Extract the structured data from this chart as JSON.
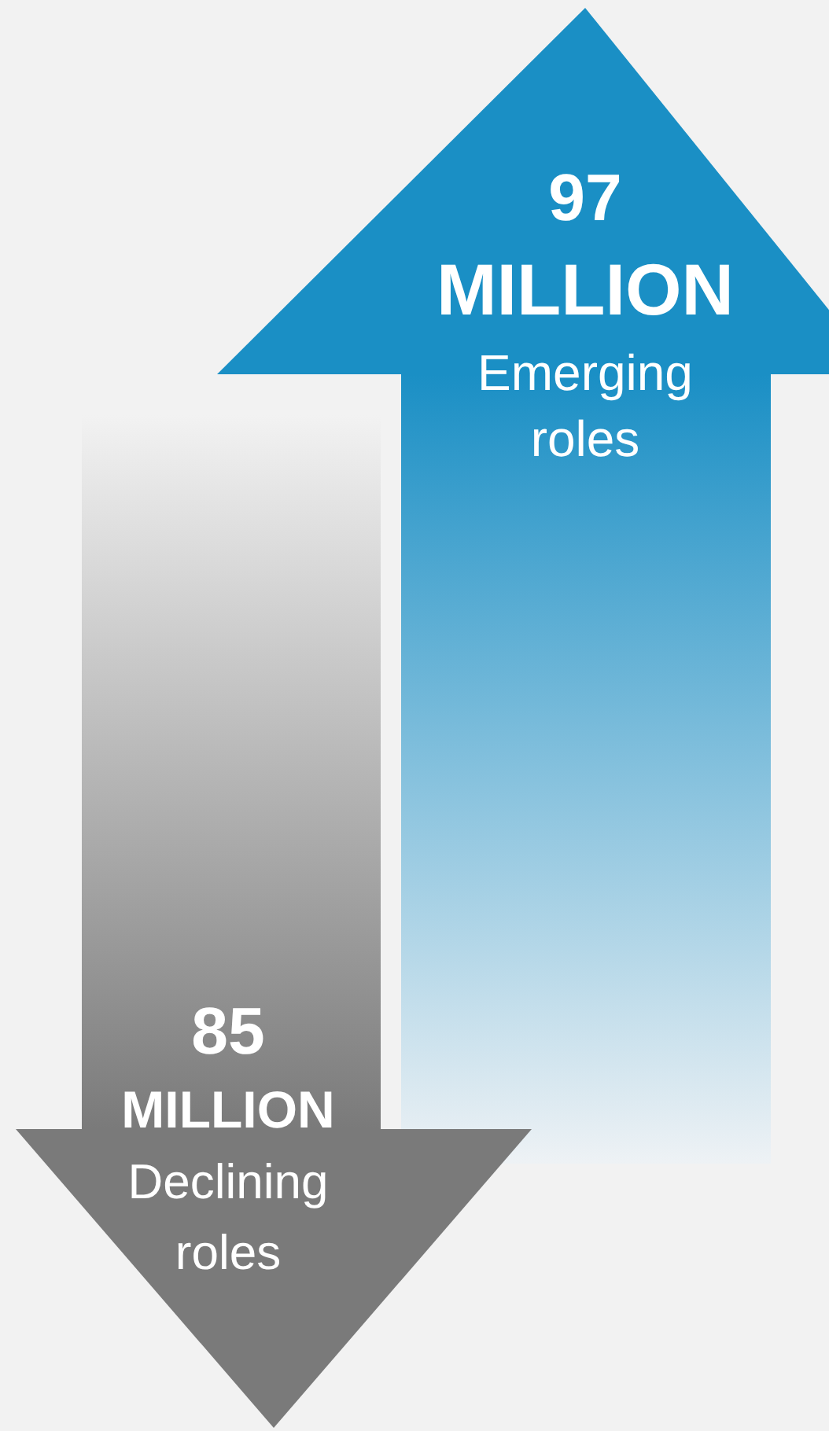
{
  "chart_data": {
    "type": "other",
    "categories": [
      "Emerging roles",
      "Declining roles"
    ],
    "values": [
      97,
      85
    ],
    "value_labels": [
      "97 MILLION",
      "85 MILLION"
    ],
    "colors": [
      "#1a8fc5",
      "#7a7a7a"
    ]
  }
}
